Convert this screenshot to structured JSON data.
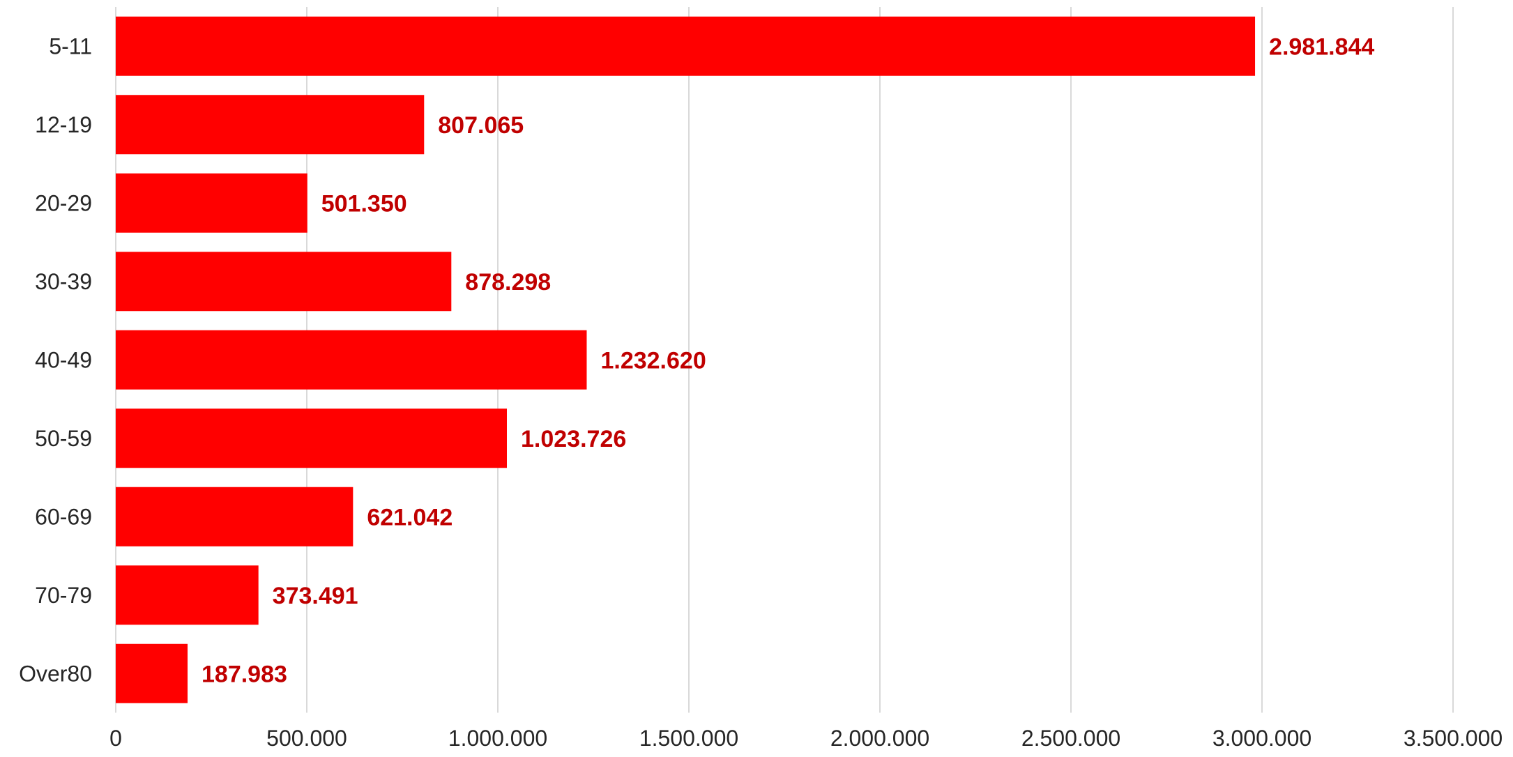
{
  "chart_data": {
    "type": "bar",
    "orientation": "horizontal",
    "categories": [
      "5-11",
      "12-19",
      "20-29",
      "30-39",
      "40-49",
      "50-59",
      "60-69",
      "70-79",
      "Over80"
    ],
    "values": [
      2981844,
      807065,
      501350,
      878298,
      1232620,
      1023726,
      621042,
      373491,
      187983
    ],
    "data_labels": [
      "2.981.844",
      "807.065",
      "501.350",
      "878.298",
      "1.232.620",
      "1.023.726",
      "621.042",
      "373.491",
      "187.983"
    ],
    "xlim": [
      0,
      3500000
    ],
    "x_ticks": [
      0,
      500000,
      1000000,
      1500000,
      2000000,
      2500000,
      3000000,
      3500000
    ],
    "x_tick_labels": [
      "0",
      "500.000",
      "1.000.000",
      "1.500.000",
      "2.000.000",
      "2.500.000",
      "3.000.000",
      "3.500.000"
    ],
    "grid": true,
    "legend": "none",
    "title": "",
    "xlabel": "",
    "ylabel": "",
    "colors": {
      "bar": "#ff0000",
      "data_label": "#c00000",
      "grid": "#d9d9d9",
      "text": "#262626"
    }
  }
}
